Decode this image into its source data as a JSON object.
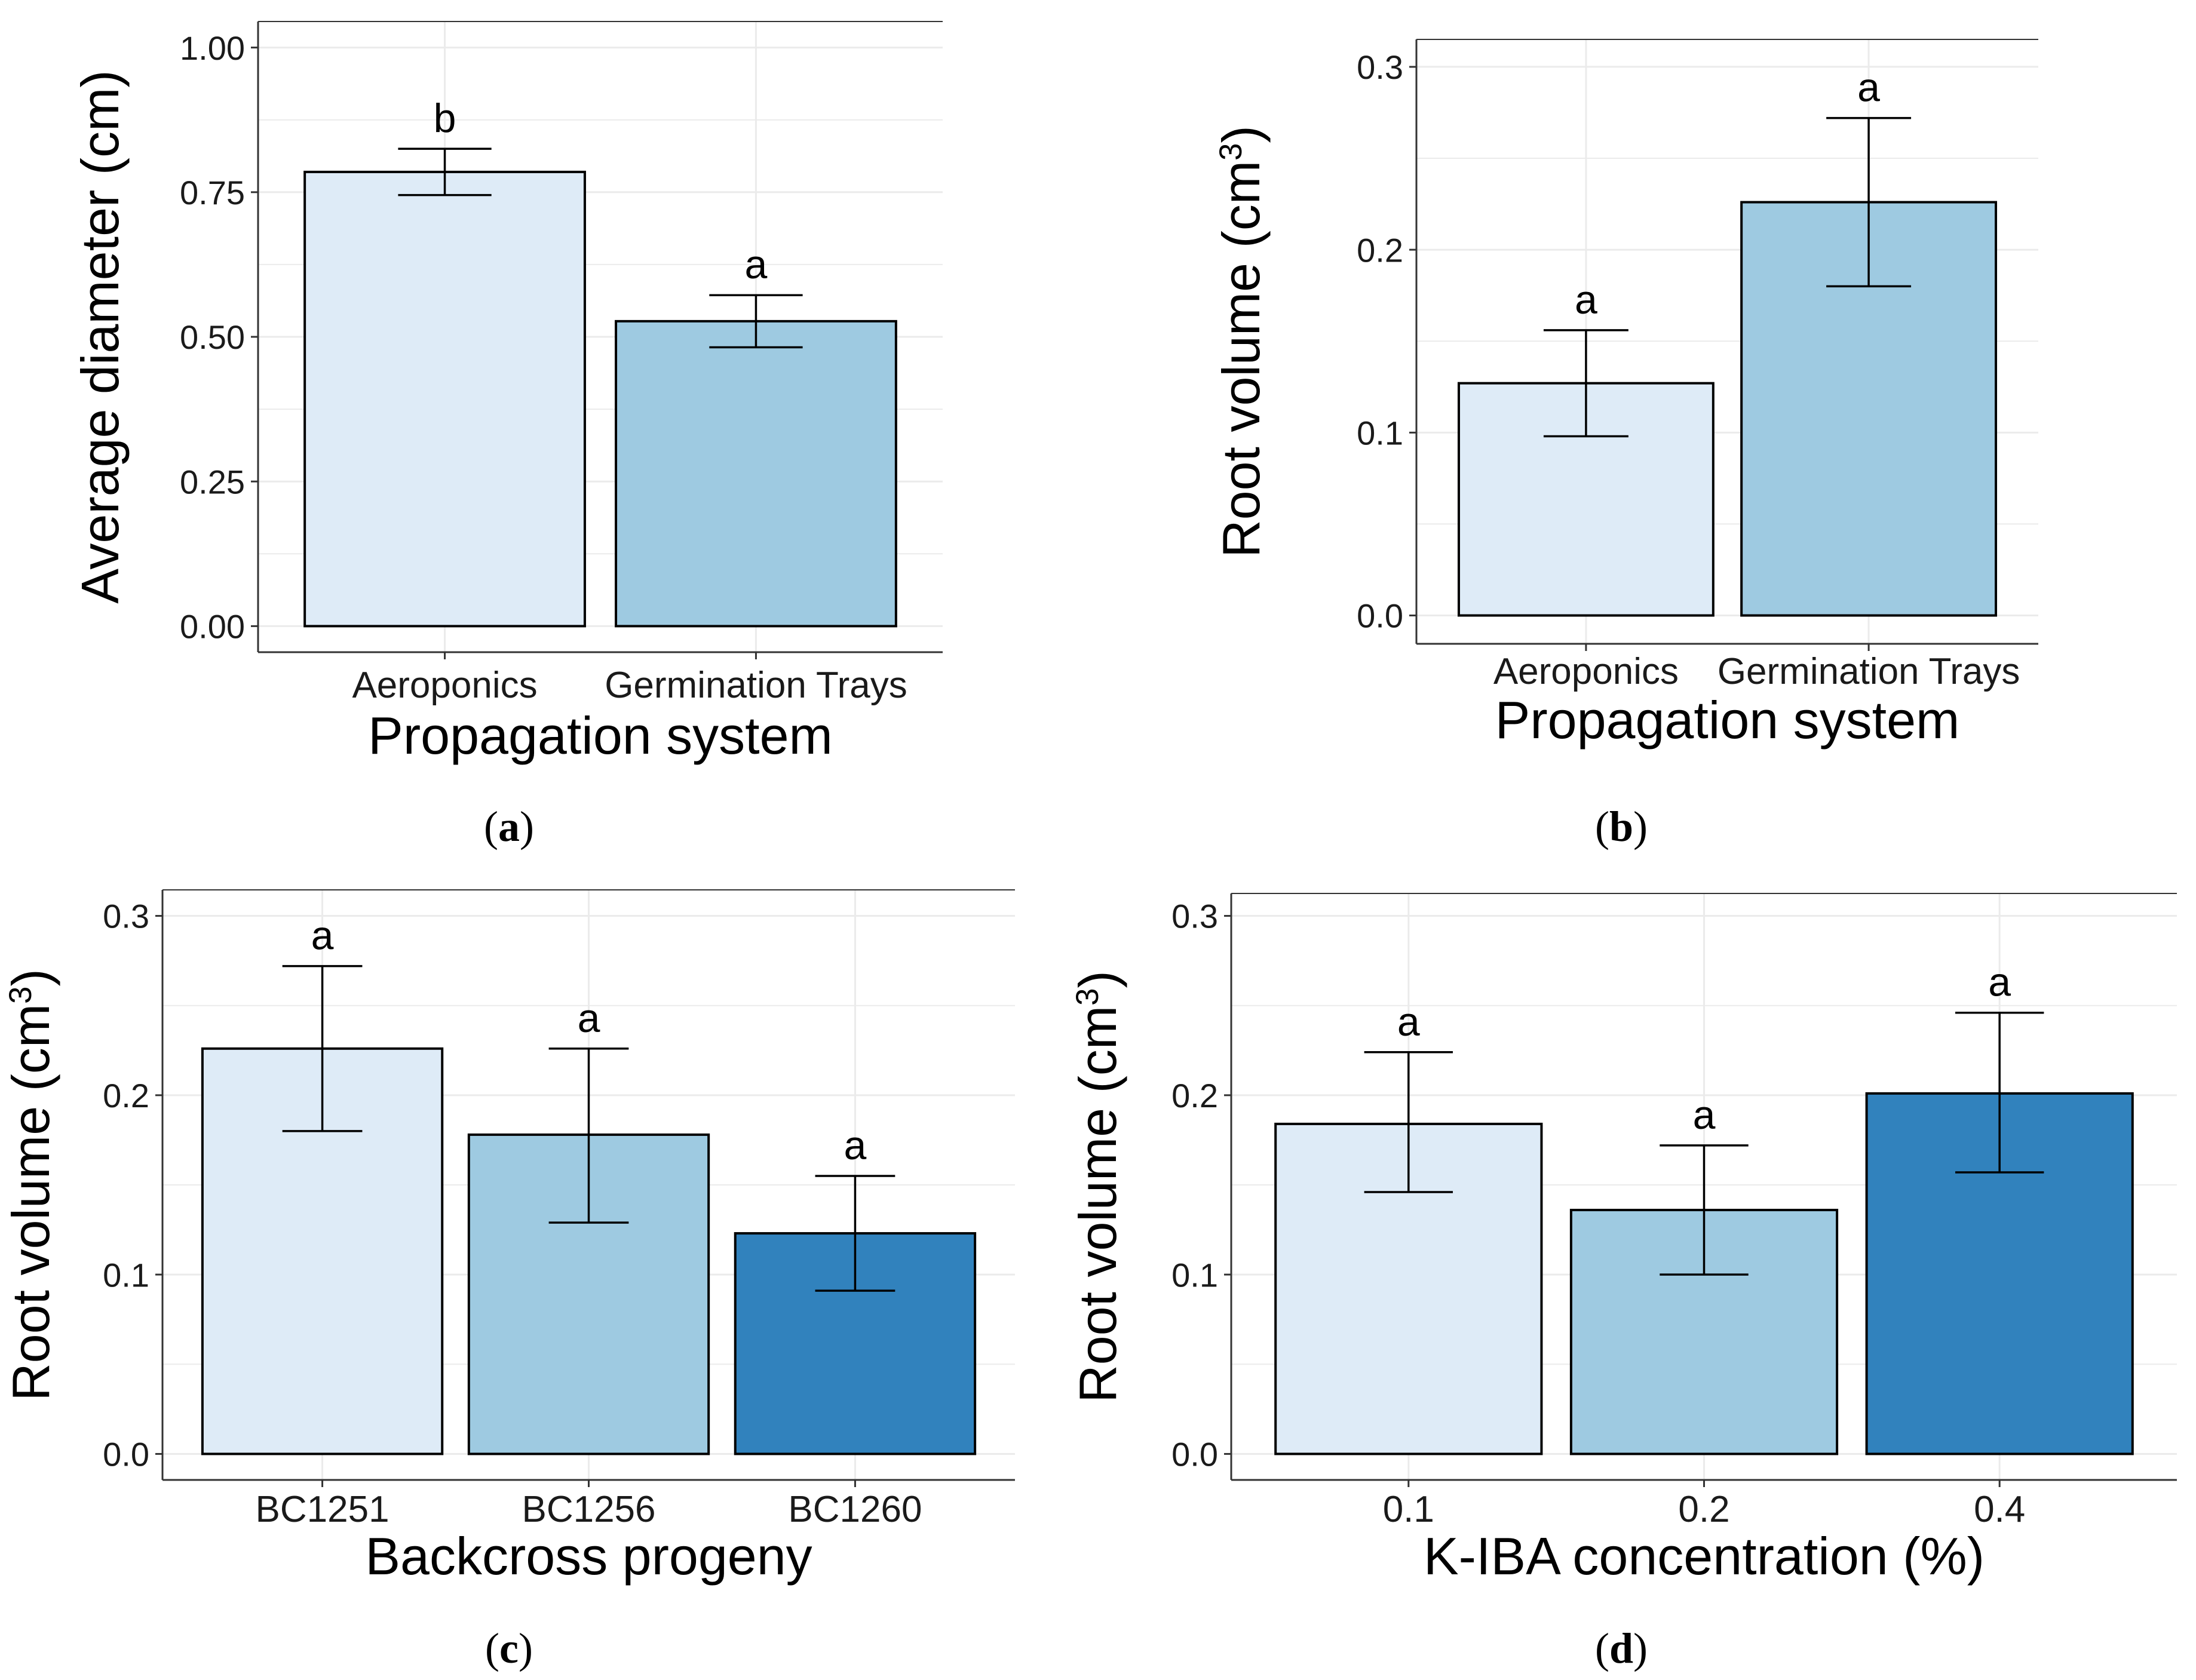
{
  "chart_data": [
    {
      "type": "bar",
      "panel_label": "a",
      "categories": [
        "Aeroponics",
        "Germination Trays"
      ],
      "values": [
        0.785,
        0.527
      ],
      "error_upper": [
        0.825,
        0.572
      ],
      "error_lower": [
        0.745,
        0.482
      ],
      "significance_letters": [
        "b",
        "a"
      ],
      "bar_colors": [
        "#DEEBF7",
        "#9ECAE1"
      ],
      "xlabel": "Propagation system",
      "ylabel": "Average diameter (cm)",
      "ylabel_superscript": "",
      "ylim": [
        -0.045,
        1.045
      ],
      "yticks": [
        0.0,
        0.25,
        0.5,
        0.75,
        1.0
      ],
      "ytick_labels": [
        "0.00",
        "0.25",
        "0.50",
        "0.75",
        "1.00"
      ],
      "grid": true
    },
    {
      "type": "bar",
      "panel_label": "b",
      "categories": [
        "Aeroponics",
        "Germination Trays"
      ],
      "values": [
        0.127,
        0.226
      ],
      "error_upper": [
        0.156,
        0.272
      ],
      "error_lower": [
        0.098,
        0.18
      ],
      "significance_letters": [
        "a",
        "a"
      ],
      "bar_colors": [
        "#DEEBF7",
        "#9ECAE1"
      ],
      "xlabel": "Propagation system",
      "ylabel": "Root volume (cm",
      "ylabel_superscript": "3",
      "ylabel_suffix": ")",
      "ylim": [
        -0.0155,
        0.315
      ],
      "yticks": [
        0.0,
        0.1,
        0.2,
        0.3
      ],
      "ytick_labels": [
        "0.0",
        "0.1",
        "0.2",
        "0.3"
      ],
      "grid": true
    },
    {
      "type": "bar",
      "panel_label": "c",
      "categories": [
        "BC1251",
        "BC1256",
        "BC1260"
      ],
      "values": [
        0.226,
        0.178,
        0.123
      ],
      "error_upper": [
        0.272,
        0.226,
        0.155
      ],
      "error_lower": [
        0.18,
        0.129,
        0.091
      ],
      "significance_letters": [
        "a",
        "a",
        "a"
      ],
      "bar_colors": [
        "#DEEBF7",
        "#9ECAE1",
        "#3182BD"
      ],
      "xlabel": "Backcross progeny",
      "ylabel": "Root volume (cm",
      "ylabel_superscript": "3",
      "ylabel_suffix": ")",
      "ylim": [
        -0.0145,
        0.3145
      ],
      "yticks": [
        0.0,
        0.1,
        0.2,
        0.3
      ],
      "ytick_labels": [
        "0.0",
        "0.1",
        "0.2",
        "0.3"
      ],
      "grid": true
    },
    {
      "type": "bar",
      "panel_label": "d",
      "categories": [
        "0.1",
        "0.2",
        "0.4"
      ],
      "values": [
        0.184,
        0.136,
        0.201
      ],
      "error_upper": [
        0.224,
        0.172,
        0.246
      ],
      "error_lower": [
        0.146,
        0.1,
        0.157
      ],
      "significance_letters": [
        "a",
        "a",
        "a"
      ],
      "bar_colors": [
        "#DEEBF7",
        "#9ECAE1",
        "#3182BD"
      ],
      "xlabel": "K-IBA concentration (%)",
      "ylabel": "Root volume (cm",
      "ylabel_superscript": "3",
      "ylabel_suffix": ")",
      "ylim": [
        -0.0145,
        0.3125
      ],
      "yticks": [
        0.0,
        0.1,
        0.2,
        0.3
      ],
      "ytick_labels": [
        "0.0",
        "0.1",
        "0.2",
        "0.3"
      ],
      "grid": true
    }
  ],
  "style": {
    "grid_color": "#EBEBEB",
    "axis_color": "#333333",
    "bar_edge_color": "#000000",
    "text_color": "#000000",
    "tick_text_color": "#1A1A1A"
  }
}
